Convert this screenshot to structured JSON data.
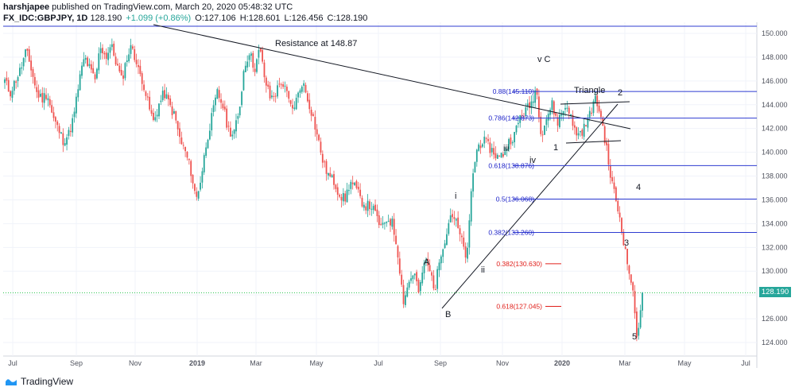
{
  "header": {
    "publisher": "harshjapee",
    "published_text": "published on TradingView.com, March 20, 2020 05:48:32 UTC",
    "symbol": "FX_IDC:GBPJPY, 1D",
    "last": "128.190",
    "change": "+1.099 (+0.86%)",
    "open": "O:127.106",
    "high": "H:128.601",
    "low": "L:126.456",
    "close": "C:128.190"
  },
  "brand": {
    "name": "TradingView"
  },
  "price_tag": "128.190",
  "colors": {
    "up": "#26a69a",
    "down": "#ef5350",
    "fib_line": "#2f3cd1",
    "fib_text_blue": "#1e23c9",
    "fib_text_red": "#e0201b",
    "current_line": "#26c24b"
  },
  "chart_data": {
    "type": "candlestick",
    "title": "",
    "x_ticks": [
      "Jul",
      "Sep",
      "Nov",
      "2019",
      "Mar",
      "May",
      "Jul",
      "Sep",
      "Nov",
      "2020",
      "Mar",
      "May",
      "Jul"
    ],
    "y_ticks": [
      "124.000",
      "126.000",
      "128.000",
      "130.000",
      "132.000",
      "134.000",
      "136.000",
      "138.000",
      "140.000",
      "142.000",
      "144.000",
      "146.000",
      "148.000",
      "150.000"
    ],
    "ylim": [
      123.2,
      150.8
    ],
    "current_price": 128.19,
    "horizontal_lines": [
      150.6
    ],
    "annotations": [
      {
        "text": "Resistance at 148.87"
      },
      {
        "text": "Triangle"
      },
      {
        "text": "v C"
      },
      {
        "text": "2"
      },
      {
        "text": "1"
      },
      {
        "text": "iii"
      },
      {
        "text": "iv"
      },
      {
        "text": "i"
      },
      {
        "text": "ii"
      },
      {
        "text": "A"
      },
      {
        "text": "B"
      },
      {
        "text": "3"
      },
      {
        "text": "4"
      },
      {
        "text": "5"
      }
    ],
    "fib_levels": [
      {
        "label": "0.88(145.110)",
        "price": 145.11,
        "color": "blue"
      },
      {
        "label": "0.786(142.873)",
        "price": 142.873,
        "color": "blue"
      },
      {
        "label": "0.618(138.876)",
        "price": 138.876,
        "color": "blue"
      },
      {
        "label": "0.5(136.068)",
        "price": 136.068,
        "color": "blue"
      },
      {
        "label": "0.382(133.260)",
        "price": 133.26,
        "color": "blue"
      },
      {
        "label": "0.382(130.630)",
        "price": 130.63,
        "color": "red"
      },
      {
        "label": "0.618(127.045)",
        "price": 127.045,
        "color": "red"
      }
    ],
    "series": [
      {
        "values": [
          146,
          145,
          146,
          147,
          148.5,
          147,
          145,
          144.5,
          145,
          143,
          142,
          141,
          141.5,
          143,
          146,
          148,
          147,
          146,
          149,
          148,
          149,
          147.5,
          146,
          148,
          149,
          147,
          146,
          144,
          142.5,
          144,
          145,
          144,
          143,
          141,
          140,
          138.5,
          136,
          138,
          141,
          143,
          145,
          144,
          142,
          141.5,
          143,
          147,
          148.5,
          147,
          148.7,
          146,
          144.5,
          145,
          146,
          145,
          143.5,
          144.5,
          146,
          144.5,
          143,
          141,
          139,
          138,
          137.5,
          136.5,
          136,
          137.5,
          137,
          136,
          135.5,
          135.5,
          134.5,
          133.5,
          134.5,
          134,
          131.5,
          127.5,
          129,
          130,
          128,
          131,
          130,
          128.5,
          131.5,
          133,
          135,
          134,
          132.5,
          131,
          138,
          140.5,
          141,
          140.5,
          140,
          139.5,
          140,
          141,
          141.5,
          143,
          143.5,
          144,
          145.5,
          141.5,
          143,
          144,
          142.5,
          143.5,
          144,
          142,
          141.5,
          142,
          143,
          144.5,
          143.5,
          141,
          138,
          136,
          134,
          131,
          129,
          124.5,
          128.2
        ]
      }
    ]
  }
}
